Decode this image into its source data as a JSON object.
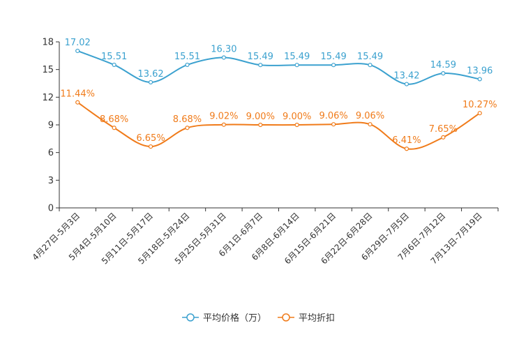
{
  "chart_data": {
    "type": "line",
    "title": "",
    "xlabel": "",
    "ylabel": "",
    "ylim": [
      0,
      18
    ],
    "yticks": [
      0,
      3,
      6,
      9,
      12,
      15,
      18
    ],
    "categories": [
      "4月27日-5月3日",
      "5月4日-5月10日",
      "5月11日-5月17日",
      "5月18日-5月24日",
      "5月25日-5月31日",
      "6月1日-6月7日",
      "6月8日-6月14日",
      "6月15日-6月21日",
      "6月22日-6月28日",
      "6月29日-7月5日",
      "7月6日-7月12日",
      "7月13日-7月19日"
    ],
    "series": [
      {
        "name": "平均价格（万）",
        "color": "#3ba1cf",
        "values": [
          17.02,
          15.51,
          13.62,
          15.51,
          16.3,
          15.49,
          15.49,
          15.49,
          15.49,
          13.42,
          14.59,
          13.96
        ],
        "labels": [
          "17.02",
          "15.51",
          "13.62",
          "15.51",
          "16.30",
          "15.49",
          "15.49",
          "15.49",
          "15.49",
          "13.42",
          "14.59",
          "13.96"
        ]
      },
      {
        "name": "平均折扣",
        "color": "#f07b1a",
        "values": [
          11.44,
          8.68,
          6.65,
          8.68,
          9.02,
          9.0,
          9.0,
          9.06,
          9.06,
          6.41,
          7.65,
          10.27
        ],
        "labels": [
          "11.44%",
          "8.68%",
          "6.65%",
          "8.68%",
          "9.02%",
          "9.00%",
          "9.00%",
          "9.06%",
          "9.06%",
          "6.41%",
          "7.65%",
          "10.27%"
        ]
      }
    ],
    "legend_position": "bottom-center",
    "grid": false
  }
}
